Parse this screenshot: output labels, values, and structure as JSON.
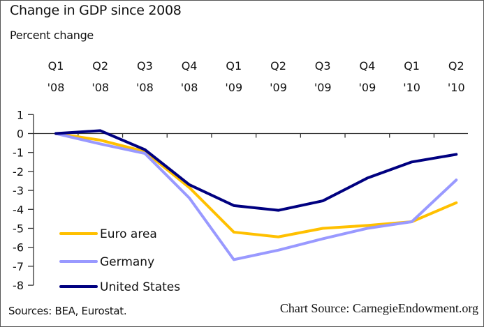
{
  "chart_data": {
    "type": "line",
    "title": "Change in GDP since 2008",
    "ylabel": "Percent change",
    "xlabel": "",
    "categories": [
      {
        "q": "Q1",
        "y": "'08"
      },
      {
        "q": "Q2",
        "y": "'08"
      },
      {
        "q": "Q3",
        "y": "'08"
      },
      {
        "q": "Q4",
        "y": "'08"
      },
      {
        "q": "Q1",
        "y": "'09"
      },
      {
        "q": "Q2",
        "y": "'09"
      },
      {
        "q": "Q3",
        "y": "'09"
      },
      {
        "q": "Q4",
        "y": "'09"
      },
      {
        "q": "Q1",
        "y": "'10"
      },
      {
        "q": "Q2",
        "y": "'10"
      }
    ],
    "ylim": [
      -8,
      1
    ],
    "yticks": [
      1,
      0,
      -1,
      -2,
      -3,
      -4,
      -5,
      -6,
      -7,
      -8
    ],
    "x_axis_position": "top",
    "grid": false,
    "legend_position": "bottom-left",
    "series": [
      {
        "name": "Euro area",
        "color": "#FFC000",
        "values": [
          0,
          -0.35,
          -0.95,
          -2.85,
          -5.2,
          -5.45,
          -5.0,
          -4.85,
          -4.65,
          -3.65
        ]
      },
      {
        "name": "Germany",
        "color": "#9999FF",
        "values": [
          0,
          -0.55,
          -1.05,
          -3.4,
          -6.65,
          -6.15,
          -5.55,
          -5.0,
          -4.65,
          -2.45
        ]
      },
      {
        "name": "United States",
        "color": "#000080",
        "values": [
          0,
          0.15,
          -0.85,
          -2.7,
          -3.8,
          -4.05,
          -3.55,
          -2.35,
          -1.5,
          -1.1
        ]
      }
    ]
  },
  "footer": {
    "sources": "Sources: BEA, Eurostat.",
    "chart_source": "Chart Source: CarnegieEndowment.org"
  }
}
